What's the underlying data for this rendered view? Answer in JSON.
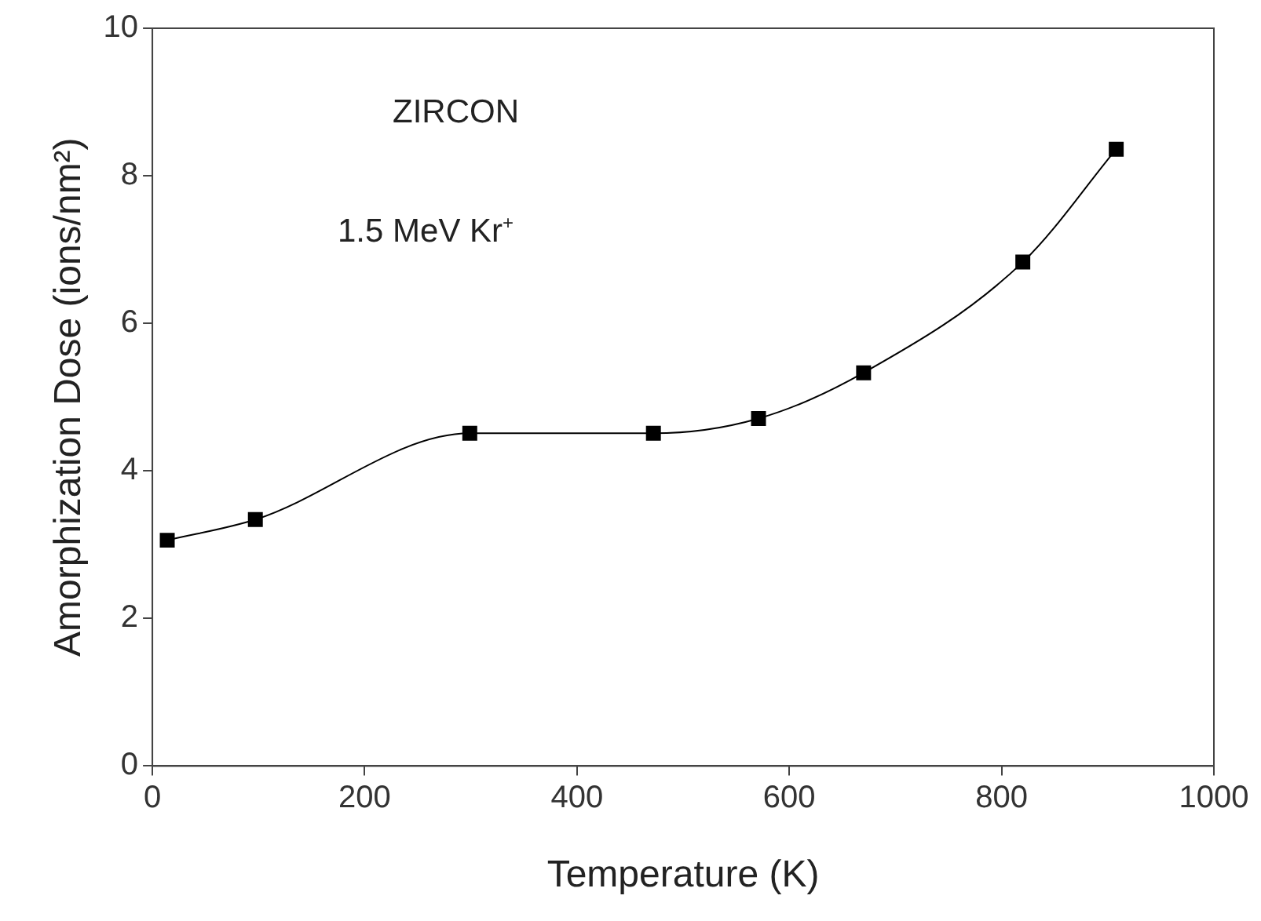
{
  "chart_data": {
    "type": "line",
    "xlabel": "Temperature (K)",
    "ylabel": "Amorphization Dose (ions/nm²)",
    "annotations": [
      {
        "text": "ZIRCON"
      },
      {
        "text": "1.5 MeV Kr$^{+}$"
      }
    ],
    "x": [
      14,
      97,
      299,
      472,
      571,
      670,
      820,
      908
    ],
    "series": [
      {
        "color": "#000000",
        "values": [
          3.06,
          3.34,
          4.51,
          4.51,
          4.71,
          5.33,
          6.83,
          8.36
        ]
      }
    ],
    "xlim": [
      0,
      1000
    ],
    "xticks": [
      0,
      200,
      400,
      600,
      800,
      1000
    ],
    "ylim": [
      0,
      10
    ],
    "yticks": [
      0,
      2,
      4,
      6,
      8,
      10
    ],
    "marker": "square",
    "line_style": "solid",
    "legend": false
  }
}
